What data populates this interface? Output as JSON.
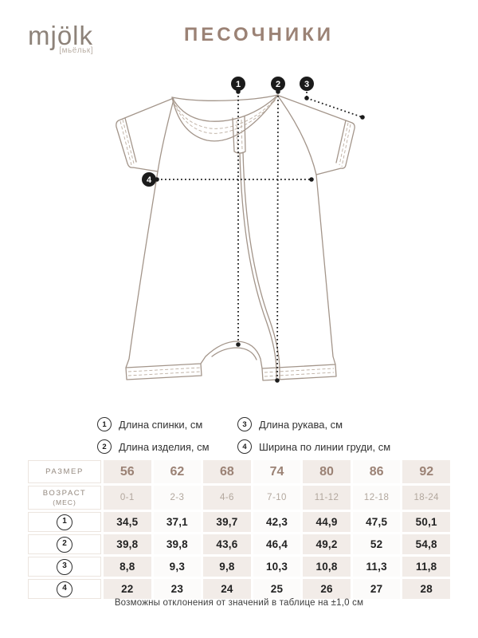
{
  "brand": {
    "logo": "mjölk",
    "logo_sub": "[мьёльк]"
  },
  "title": "ПЕСОЧНИКИ",
  "diagram": {
    "markers": [
      "1",
      "2",
      "3",
      "4"
    ]
  },
  "legend": {
    "items": [
      {
        "num": "1",
        "label": "Длина спинки, см"
      },
      {
        "num": "2",
        "label": "Длина изделия, см"
      },
      {
        "num": "3",
        "label": "Длина рукава, см"
      },
      {
        "num": "4",
        "label": "Ширина по линии груди, см"
      }
    ]
  },
  "table": {
    "size_label": "РАЗМЕР",
    "age_label": "ВОЗРАСТ",
    "age_sublabel": "(мес)",
    "sizes": [
      "56",
      "62",
      "68",
      "74",
      "80",
      "86",
      "92"
    ],
    "ages": [
      "0-1",
      "2-3",
      "4-6",
      "7-10",
      "11-12",
      "12-18",
      "18-24"
    ],
    "rows": [
      {
        "num": "1",
        "values": [
          "34,5",
          "37,1",
          "39,7",
          "42,3",
          "44,9",
          "47,5",
          "50,1"
        ]
      },
      {
        "num": "2",
        "values": [
          "39,8",
          "39,8",
          "43,6",
          "46,4",
          "49,2",
          "52",
          "54,8"
        ]
      },
      {
        "num": "3",
        "values": [
          "8,8",
          "9,3",
          "9,8",
          "10,3",
          "10,8",
          "11,3",
          "11,8"
        ]
      },
      {
        "num": "4",
        "values": [
          "22",
          "23",
          "24",
          "25",
          "26",
          "27",
          "28"
        ]
      }
    ]
  },
  "footer_note": "Возможны отклонения от значений в таблице на ±1,0 см",
  "colors": {
    "accent": "#9b8275",
    "drawing_line": "#a3958a",
    "marker": "#1b1b1b",
    "cell_odd_bg": "#f2ece8",
    "age_text": "#b2a79d"
  }
}
